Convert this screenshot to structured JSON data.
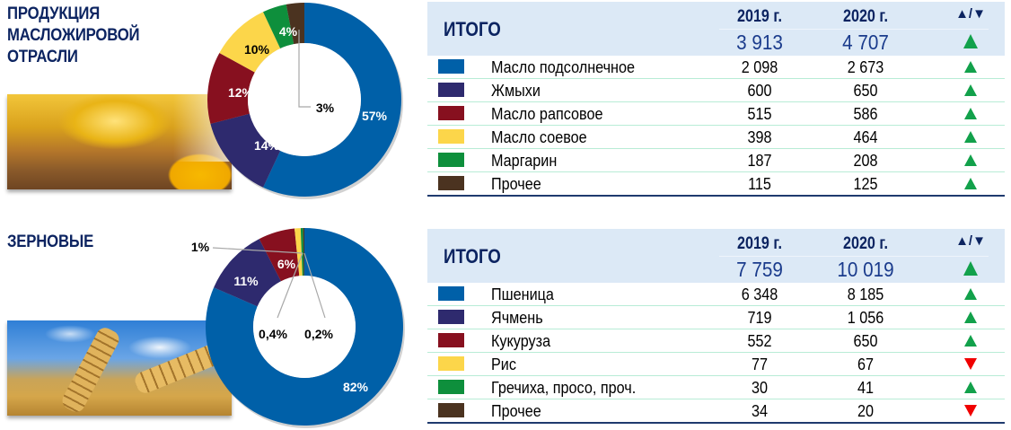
{
  "columns": {
    "y2019": "2019 г.",
    "y2020": "2020 г.",
    "trend": "▲/▼"
  },
  "colors": {
    "blue": "#0060a8",
    "indigo": "#2e2a6e",
    "maroon": "#87101f",
    "yellow": "#fcd64a",
    "green": "#0e8f3c",
    "brown": "#4b3320",
    "up": "#12a14b",
    "down": "#f00000",
    "header_bg": "#dce9f6",
    "title": "#0c2461"
  },
  "sections": [
    {
      "title": "ПРОДУКЦИЯ\nМАСЛОЖИРОВОЙ\nОТРАСЛИ",
      "photo": "sunflower-oil-photo",
      "total_label": "ИТОГО",
      "total": {
        "y2019": "3 913",
        "y2020": "4 707",
        "trend": "up"
      },
      "rows": [
        {
          "name": "Масло подсолнечное",
          "y2019": "2 098",
          "y2020": "2 673",
          "trend": "up",
          "color": "#0060a8"
        },
        {
          "name": "Жмыхи",
          "y2019": "600",
          "y2020": "650",
          "trend": "up",
          "color": "#2e2a6e"
        },
        {
          "name": "Масло рапсовое",
          "y2019": "515",
          "y2020": "586",
          "trend": "up",
          "color": "#87101f"
        },
        {
          "name": "Масло соевое",
          "y2019": "398",
          "y2020": "464",
          "trend": "up",
          "color": "#fcd64a"
        },
        {
          "name": "Маргарин",
          "y2019": "187",
          "y2020": "208",
          "trend": "up",
          "color": "#0e8f3c"
        },
        {
          "name": "Прочее",
          "y2019": "115",
          "y2020": "125",
          "trend": "up",
          "color": "#4b3320"
        }
      ],
      "donut_labels": [
        "57%",
        "14%",
        "12%",
        "10%",
        "4%",
        "3%"
      ]
    },
    {
      "title": "ЗЕРНОВЫЕ",
      "photo": "wheat-photo",
      "total_label": "ИТОГО",
      "total": {
        "y2019": "7 759",
        "y2020": "10 019",
        "trend": "up"
      },
      "rows": [
        {
          "name": "Пшеница",
          "y2019": "6 348",
          "y2020": "8 185",
          "trend": "up",
          "color": "#0060a8"
        },
        {
          "name": "Ячмень",
          "y2019": "719",
          "y2020": "1 056",
          "trend": "up",
          "color": "#2e2a6e"
        },
        {
          "name": "Кукуруза",
          "y2019": "552",
          "y2020": "650",
          "trend": "up",
          "color": "#87101f"
        },
        {
          "name": "Рис",
          "y2019": "77",
          "y2020": "67",
          "trend": "down",
          "color": "#fcd64a"
        },
        {
          "name": "Гречиха, просо, проч.",
          "y2019": "30",
          "y2020": "41",
          "trend": "up",
          "color": "#0e8f3c"
        },
        {
          "name": "Прочее",
          "y2019": "34",
          "y2020": "20",
          "trend": "down",
          "color": "#4b3320"
        }
      ],
      "donut_labels": [
        "82%",
        "11%",
        "6%",
        "1%",
        "0,4%",
        "0,2%"
      ]
    }
  ],
  "chart_data": [
    {
      "type": "pie",
      "title": "ПРОДУКЦИЯ МАСЛОЖИРОВОЙ ОТРАСЛИ",
      "donut": true,
      "categories": [
        "Масло подсолнечное",
        "Жмыхи",
        "Масло рапсовое",
        "Масло соевое",
        "Маргарин",
        "Прочее"
      ],
      "values": [
        57,
        14,
        12,
        10,
        4,
        3
      ],
      "labels": [
        "57%",
        "14%",
        "12%",
        "10%",
        "4%",
        "3%"
      ],
      "colors": [
        "#0060a8",
        "#2e2a6e",
        "#87101f",
        "#fcd64a",
        "#0e8f3c",
        "#4b3320"
      ]
    },
    {
      "type": "pie",
      "title": "ЗЕРНОВЫЕ",
      "donut": true,
      "categories": [
        "Пшеница",
        "Ячмень",
        "Кукуруза",
        "Рис",
        "Гречиха, просо, проч.",
        "Прочее"
      ],
      "values": [
        82,
        11,
        6,
        1,
        0.4,
        0.2
      ],
      "labels": [
        "82%",
        "11%",
        "6%",
        "1%",
        "0,4%",
        "0,2%"
      ],
      "colors": [
        "#0060a8",
        "#2e2a6e",
        "#87101f",
        "#fcd64a",
        "#0e8f3c",
        "#4b3320"
      ]
    },
    {
      "type": "table",
      "title": "ИТОГО (масложировая отрасль)",
      "columns": [
        "",
        "2019 г.",
        "2020 г.",
        "▲/▼"
      ],
      "rows": [
        [
          "ИТОГО",
          3913,
          4707,
          "▲"
        ],
        [
          "Масло подсолнечное",
          2098,
          2673,
          "▲"
        ],
        [
          "Жмыхи",
          600,
          650,
          "▲"
        ],
        [
          "Масло рапсовое",
          515,
          586,
          "▲"
        ],
        [
          "Масло соевое",
          398,
          464,
          "▲"
        ],
        [
          "Маргарин",
          187,
          208,
          "▲"
        ],
        [
          "Прочее",
          115,
          125,
          "▲"
        ]
      ]
    },
    {
      "type": "table",
      "title": "ИТОГО (зерновые)",
      "columns": [
        "",
        "2019 г.",
        "2020 г.",
        "▲/▼"
      ],
      "rows": [
        [
          "ИТОГО",
          7759,
          10019,
          "▲"
        ],
        [
          "Пшеница",
          6348,
          8185,
          "▲"
        ],
        [
          "Ячмень",
          719,
          1056,
          "▲"
        ],
        [
          "Кукуруза",
          552,
          650,
          "▲"
        ],
        [
          "Рис",
          77,
          67,
          "▼"
        ],
        [
          "Гречиха, просо, проч.",
          30,
          41,
          "▲"
        ],
        [
          "Прочее",
          34,
          20,
          "▼"
        ]
      ]
    }
  ]
}
